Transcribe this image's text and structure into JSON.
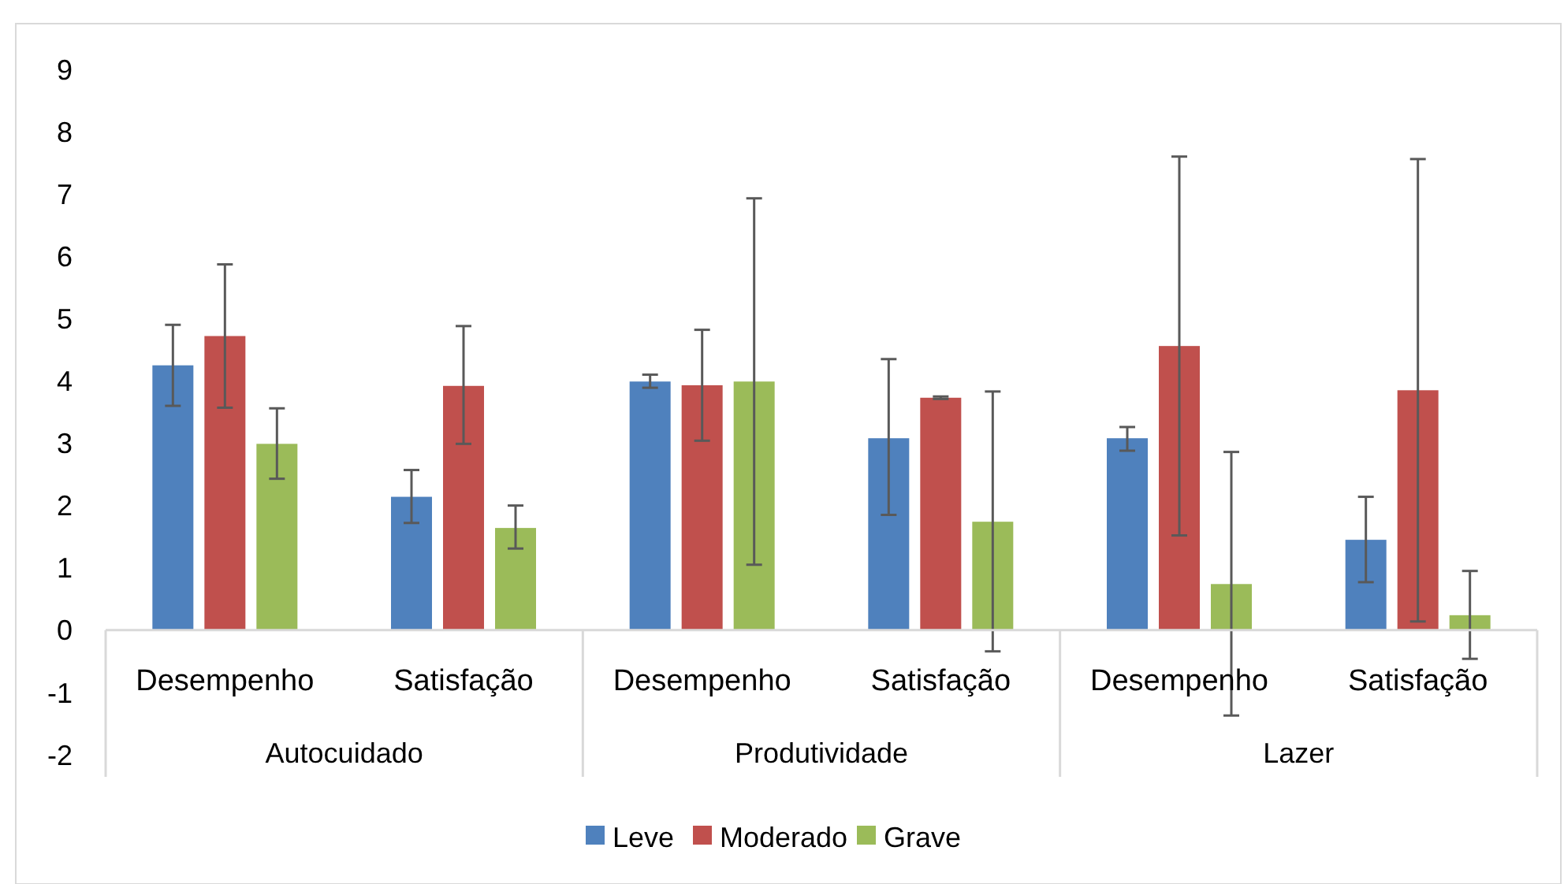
{
  "chart_data": {
    "type": "bar",
    "categories": [
      "Desempenho",
      "Satisfação",
      "Desempenho",
      "Satisfação",
      "Desempenho",
      "Satisfação"
    ],
    "annotations": [
      "Autocuidado",
      "Produtividade",
      "Lazer"
    ],
    "series": [
      {
        "name": "Leve",
        "color": "#4f81bd",
        "values": [
          4.25,
          2.14,
          3.99,
          3.08,
          3.08,
          1.45
        ],
        "errors": [
          [
            3.6,
            4.9
          ],
          [
            1.72,
            2.57
          ],
          [
            3.89,
            4.1
          ],
          [
            1.85,
            4.35
          ],
          [
            2.88,
            3.26
          ],
          [
            0.77,
            2.14
          ]
        ]
      },
      {
        "name": "Moderado",
        "color": "#c0504d",
        "values": [
          4.72,
          3.92,
          3.93,
          3.73,
          4.56,
          3.85
        ],
        "errors": [
          [
            3.57,
            5.87
          ],
          [
            2.99,
            4.88
          ],
          [
            3.04,
            4.82
          ],
          [
            3.71,
            3.75
          ],
          [
            1.52,
            7.6
          ],
          [
            0.14,
            7.56
          ]
        ]
      },
      {
        "name": "Grave",
        "color": "#9bbb59",
        "values": [
          2.99,
          1.64,
          3.99,
          1.74,
          0.74,
          0.24
        ],
        "errors": [
          [
            2.43,
            3.56
          ],
          [
            1.31,
            2.0
          ],
          [
            1.05,
            6.93
          ],
          [
            -0.34,
            3.83
          ],
          [
            -1.37,
            2.86
          ],
          [
            -0.46,
            0.95
          ]
        ]
      }
    ],
    "ylim": [
      -2,
      9
    ],
    "yticks": [
      -2,
      -1,
      0,
      1,
      2,
      3,
      4,
      5,
      6,
      7,
      8,
      9
    ],
    "grid": false,
    "legend": "bottom"
  }
}
